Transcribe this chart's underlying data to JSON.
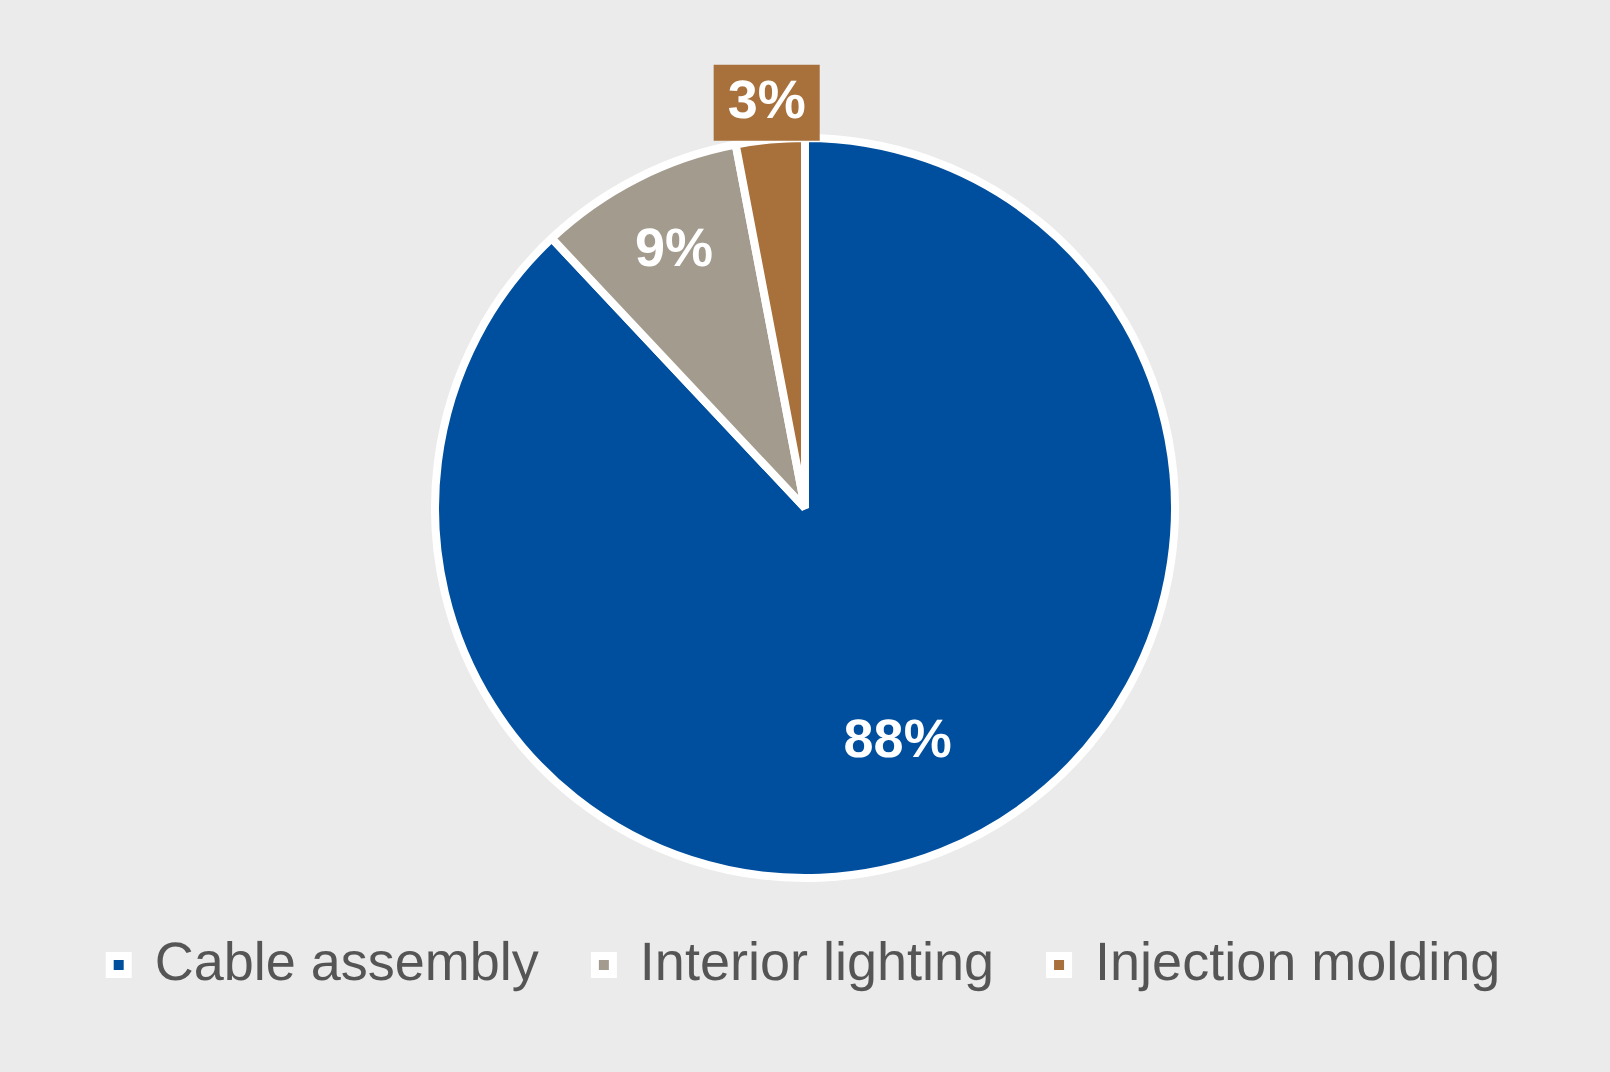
{
  "chart_data": {
    "type": "pie",
    "categories": [
      "Cable assembly",
      "Interior lighting",
      "Injection molding"
    ],
    "values": [
      88,
      9,
      3
    ],
    "colors": [
      "#004f9e",
      "#a39b8e",
      "#a8703a"
    ],
    "value_labels": [
      "88%",
      "9%",
      "3%"
    ],
    "legend": "bottom"
  }
}
